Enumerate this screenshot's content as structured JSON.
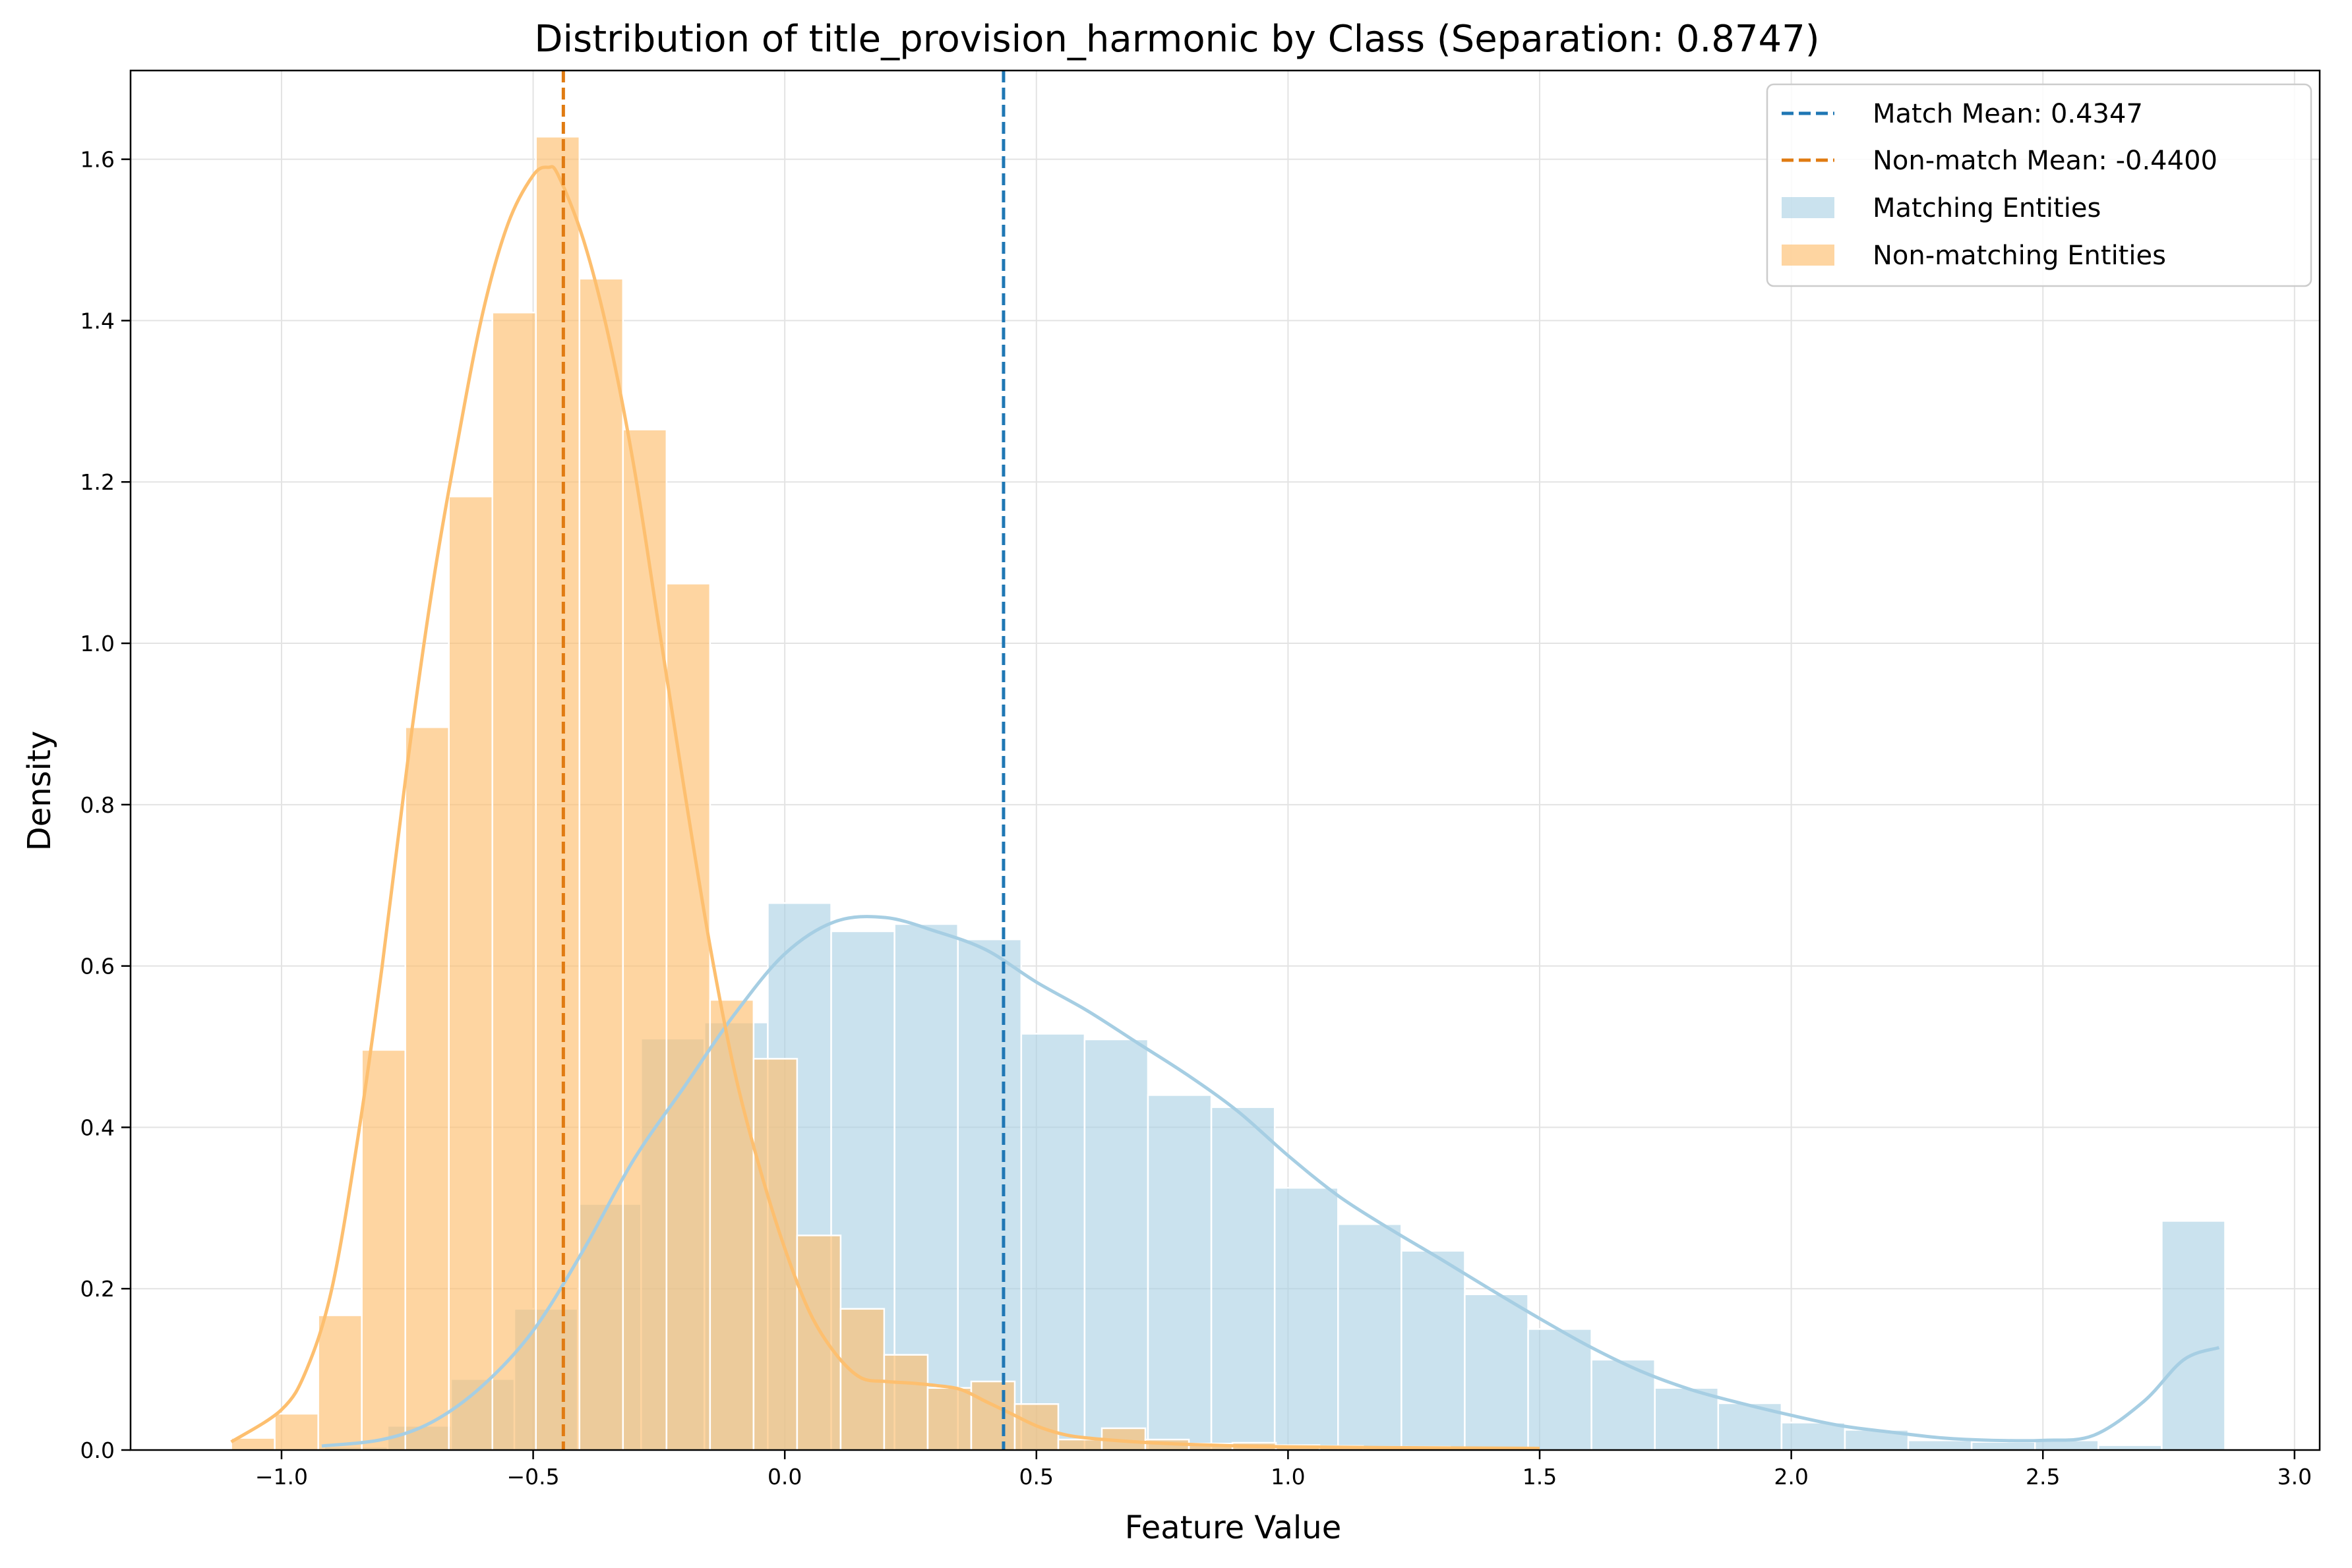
{
  "chart_data": {
    "type": "histogram",
    "title": "Distribution of title_provision_harmonic by Class (Separation: 0.8747)",
    "xlabel": "Feature Value",
    "ylabel": "Density",
    "xlim": [
      -1.3,
      3.05
    ],
    "ylim": [
      0,
      1.71
    ],
    "xticks": [
      -1.0,
      -0.5,
      0.0,
      0.5,
      1.0,
      1.5,
      2.0,
      2.5,
      3.0
    ],
    "xtick_labels": [
      "−1.0",
      "−0.5",
      "0.0",
      "0.5",
      "1.0",
      "1.5",
      "2.0",
      "2.5",
      "3.0"
    ],
    "yticks": [
      0.0,
      0.2,
      0.4,
      0.6,
      0.8,
      1.0,
      1.2,
      1.4,
      1.6
    ],
    "ytick_labels": [
      "0.0",
      "0.2",
      "0.4",
      "0.6",
      "0.8",
      "1.0",
      "1.2",
      "1.4",
      "1.6"
    ],
    "grid": true,
    "legend_position": "top-right",
    "series": [
      {
        "name": "Matching Entities",
        "color": "#a6cee3",
        "bin_start": -0.915,
        "bin_width": 0.1259,
        "values": [
          0.004,
          0.03,
          0.088,
          0.175,
          0.305,
          0.51,
          0.53,
          0.678,
          0.643,
          0.652,
          0.633,
          0.516,
          0.509,
          0.44,
          0.425,
          0.325,
          0.28,
          0.247,
          0.193,
          0.15,
          0.112,
          0.077,
          0.058,
          0.034,
          0.025,
          0.012,
          0.01,
          0.012,
          0.006,
          0.284
        ],
        "kde": {
          "x": [
            -0.92,
            -0.8,
            -0.7,
            -0.6,
            -0.5,
            -0.4,
            -0.3,
            -0.2,
            -0.1,
            0.0,
            0.1,
            0.2,
            0.3,
            0.4,
            0.5,
            0.6,
            0.7,
            0.8,
            0.9,
            1.0,
            1.1,
            1.2,
            1.3,
            1.4,
            1.5,
            1.6,
            1.7,
            1.8,
            1.9,
            2.0,
            2.1,
            2.2,
            2.3,
            2.4,
            2.5,
            2.6,
            2.7,
            2.78,
            2.85
          ],
          "y": [
            0.005,
            0.013,
            0.035,
            0.08,
            0.148,
            0.248,
            0.36,
            0.45,
            0.54,
            0.615,
            0.655,
            0.66,
            0.643,
            0.62,
            0.58,
            0.545,
            0.505,
            0.465,
            0.42,
            0.365,
            0.315,
            0.275,
            0.238,
            0.2,
            0.163,
            0.128,
            0.098,
            0.075,
            0.058,
            0.043,
            0.03,
            0.022,
            0.015,
            0.012,
            0.012,
            0.018,
            0.06,
            0.112,
            0.127
          ]
        }
      },
      {
        "name": "Non-matching Entities",
        "color": "#fdbf6f",
        "bin_start": -1.1,
        "bin_width": 0.0865,
        "values": [
          0.015,
          0.045,
          0.167,
          0.496,
          0.896,
          1.182,
          1.41,
          1.628,
          1.452,
          1.265,
          1.074,
          0.558,
          0.485,
          0.266,
          0.175,
          0.118,
          0.077,
          0.085,
          0.057,
          0.013,
          0.027,
          0.013,
          0.008,
          0.009,
          0.006,
          0.005,
          0.004,
          0.004,
          0.003,
          0.002
        ],
        "kde": {
          "x": [
            -1.1,
            -1.0,
            -0.95,
            -0.9,
            -0.85,
            -0.8,
            -0.75,
            -0.7,
            -0.65,
            -0.6,
            -0.55,
            -0.5,
            -0.47,
            -0.45,
            -0.4,
            -0.35,
            -0.3,
            -0.25,
            -0.2,
            -0.15,
            -0.1,
            -0.05,
            0.0,
            0.05,
            0.1,
            0.15,
            0.2,
            0.25,
            0.3,
            0.35,
            0.4,
            0.45,
            0.5,
            0.55,
            0.6,
            0.7,
            0.8,
            0.9,
            1.0,
            1.2,
            1.5
          ],
          "y": [
            0.01,
            0.05,
            0.1,
            0.2,
            0.38,
            0.6,
            0.85,
            1.07,
            1.25,
            1.41,
            1.52,
            1.58,
            1.59,
            1.58,
            1.5,
            1.38,
            1.22,
            1.02,
            0.82,
            0.63,
            0.47,
            0.35,
            0.25,
            0.17,
            0.12,
            0.09,
            0.085,
            0.083,
            0.08,
            0.075,
            0.06,
            0.045,
            0.03,
            0.02,
            0.015,
            0.01,
            0.007,
            0.005,
            0.004,
            0.003,
            0.002
          ]
        }
      }
    ],
    "mean_lines": [
      {
        "label": "Match Mean: 0.4347",
        "value": 0.4347,
        "color": "#1f77b4"
      },
      {
        "label": "Non-match Mean: -0.4400",
        "value": -0.44,
        "color": "#e07b12"
      }
    ]
  }
}
